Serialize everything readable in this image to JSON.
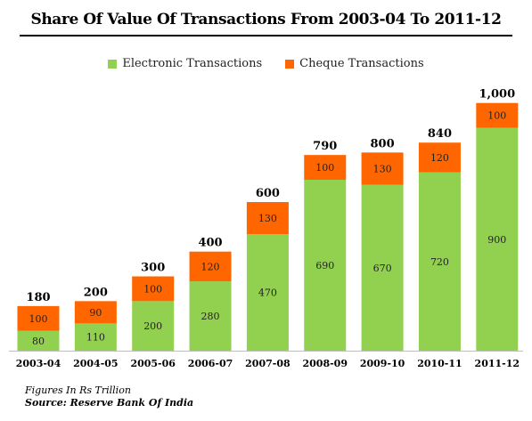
{
  "colors": {
    "electronic": "#92d050",
    "cheque": "#ff6600"
  },
  "chart_data": {
    "type": "bar",
    "stacked": true,
    "title": "Share Of Value Of Transactions From 2003-04 To 2011-12",
    "categories": [
      "2003-04",
      "2004-05",
      "2005-06",
      "2006-07",
      "2007-08",
      "2008-09",
      "2009-10",
      "2010-11",
      "2011-12"
    ],
    "series": [
      {
        "name": "Electronic Transactions",
        "values": [
          80,
          110,
          200,
          280,
          470,
          690,
          670,
          720,
          900
        ]
      },
      {
        "name": "Cheque Transactions",
        "values": [
          100,
          90,
          100,
          120,
          130,
          100,
          130,
          120,
          100
        ]
      }
    ],
    "totals": [
      "180",
      "200",
      "300",
      "400",
      "600",
      "790",
      "800",
      "840",
      "1,000"
    ],
    "ylim": [
      0,
      1000
    ],
    "grid": false,
    "legend_position": "top"
  },
  "notes": {
    "units": "Figures In Rs Trillion",
    "source": "Source: Reserve Bank Of India"
  }
}
